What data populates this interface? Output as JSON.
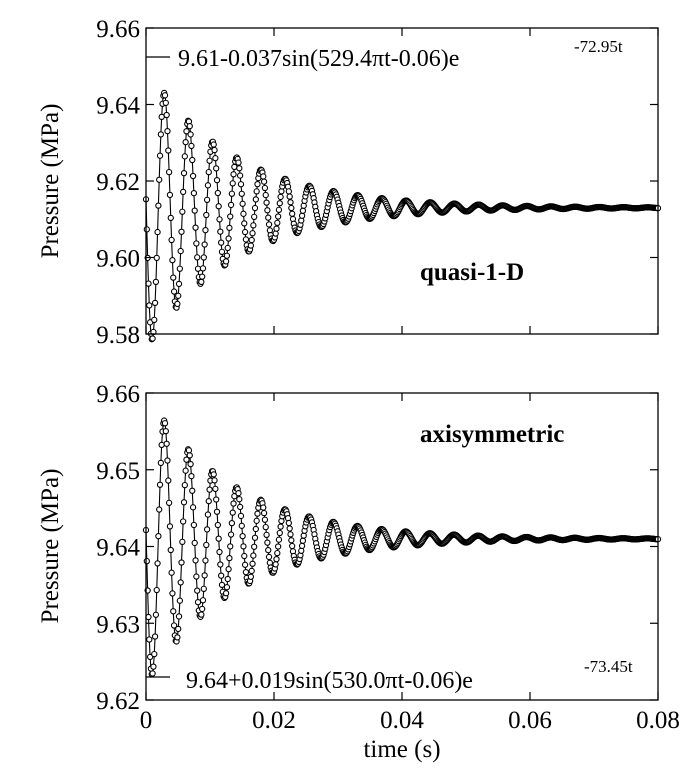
{
  "figure": {
    "xlabel": "time (s)",
    "ylabel": "Pressure (MPa)"
  },
  "chart_data": [
    {
      "type": "line",
      "panel": "top",
      "label": "quasi-1-D",
      "equation": "9.61-0.037sin(529.4πt-0.06)e",
      "equation_exponent": "-72.95t",
      "model": {
        "offset": 9.613,
        "amplitude": 0.037,
        "omega_coeff": 529.4,
        "phase": -0.06,
        "decay": 72.95
      },
      "x": {
        "min": 0,
        "max": 0.08,
        "ticks": [
          0,
          0.02,
          0.04,
          0.06,
          0.08
        ],
        "tick_labels": [
          "0",
          "0.02",
          "0.04",
          "0.06",
          "0.08"
        ],
        "show_tick_labels": false
      },
      "y": {
        "min": 9.58,
        "max": 9.66,
        "ticks": [
          9.58,
          9.6,
          9.62,
          9.64,
          9.66
        ],
        "tick_labels": [
          "9.58",
          "9.60",
          "9.62",
          "9.64",
          "9.66"
        ]
      },
      "xlabel": "",
      "ylabel": "Pressure (MPa)",
      "markers": "open-circle",
      "grid": false
    },
    {
      "type": "line",
      "panel": "bottom",
      "label": "axisymmetric",
      "equation": "9.64+0.019sin(530.0πt-0.06)e",
      "equation_exponent": "-73.45t",
      "model": {
        "offset": 9.641,
        "amplitude": 0.019,
        "omega_coeff": 530.0,
        "phase": -0.06,
        "decay": 73.45
      },
      "x": {
        "min": 0,
        "max": 0.08,
        "ticks": [
          0,
          0.02,
          0.04,
          0.06,
          0.08
        ],
        "tick_labels": [
          "0",
          "0.02",
          "0.04",
          "0.06",
          "0.08"
        ],
        "show_tick_labels": true
      },
      "y": {
        "min": 9.62,
        "max": 9.66,
        "ticks": [
          9.62,
          9.63,
          9.64,
          9.65,
          9.66
        ],
        "tick_labels": [
          "9.62",
          "9.63",
          "9.64",
          "9.65",
          "9.66"
        ]
      },
      "xlabel": "time (s)",
      "ylabel": "Pressure (MPa)",
      "markers": "open-circle",
      "grid": false
    }
  ]
}
